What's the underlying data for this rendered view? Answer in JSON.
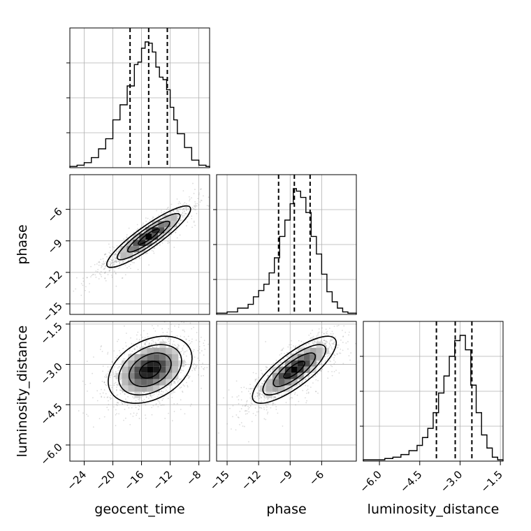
{
  "chart_data": {
    "type": "corner",
    "parameters": [
      "geocent_time",
      "phase",
      "luminosity_distance"
    ],
    "labels": {
      "geocent_time": "geocent_time",
      "phase": "phase",
      "luminosity_distance": "luminosity_distance"
    },
    "ranges": {
      "geocent_time": [
        -26.0,
        -6.5
      ],
      "phase": [
        -16.0,
        -2.7
      ],
      "luminosity_distance": [
        -6.6,
        -1.4
      ]
    },
    "ticks": {
      "geocent_time": {
        "values": [
          -24,
          -20,
          -16,
          -12,
          -8
        ],
        "labels": [
          "−24",
          "−20",
          "−16",
          "−12",
          "−8"
        ]
      },
      "phase": {
        "values": [
          -15,
          -12,
          -9,
          -6
        ],
        "labels": [
          "−15",
          "−12",
          "−9",
          "−6"
        ]
      },
      "luminosity_distance": {
        "values": [
          -6.0,
          -4.5,
          -3.0,
          -1.5
        ],
        "labels": [
          "−6.0",
          "−4.5",
          "−3.0",
          "−1.5"
        ]
      }
    },
    "quantiles": {
      "geocent_time": [
        -17.6,
        -15.0,
        -12.4
      ],
      "phase": [
        -10.1,
        -8.6,
        -7.1
      ],
      "luminosity_distance": [
        -3.88,
        -3.18,
        -2.56
      ]
    },
    "histograms": {
      "geocent_time": {
        "edges": [
          -26.0,
          -25.0,
          -24.0,
          -23.0,
          -22.0,
          -21.0,
          -20.0,
          -19.0,
          -18.0,
          -17.0,
          -16.5,
          -16.0,
          -15.5,
          -15.0,
          -14.5,
          -14.0,
          -13.5,
          -13.0,
          -12.5,
          -12.0,
          -11.5,
          -11.0,
          -10.0,
          -9.0,
          -8.0,
          -7.0,
          -6.5
        ],
        "counts": [
          1,
          2,
          4,
          8,
          15,
          23,
          38,
          50,
          65,
          82,
          84,
          95,
          100,
          99,
          92,
          80,
          72,
          70,
          62,
          48,
          38,
          27,
          16,
          6,
          2,
          1
        ]
      },
      "phase": {
        "edges": [
          -16.0,
          -15.0,
          -14.0,
          -13.0,
          -12.5,
          -12.0,
          -11.5,
          -11.0,
          -10.5,
          -10.0,
          -9.5,
          -9.0,
          -8.7,
          -8.4,
          -8.0,
          -7.5,
          -7.0,
          -6.5,
          -6.0,
          -5.5,
          -5.0,
          -4.5,
          -4.0,
          -3.5,
          -2.7
        ],
        "counts": [
          1,
          2,
          5,
          8,
          14,
          19,
          24,
          33,
          45,
          62,
          75,
          88,
          100,
          98,
          93,
          81,
          62,
          48,
          32,
          18,
          10,
          5,
          2,
          1
        ]
      },
      "luminosity_distance": {
        "edges": [
          -6.6,
          -6.2,
          -5.8,
          -5.5,
          -5.2,
          -4.9,
          -4.6,
          -4.4,
          -4.2,
          -4.0,
          -3.8,
          -3.6,
          -3.4,
          -3.2,
          -3.0,
          -2.8,
          -2.6,
          -2.4,
          -2.2,
          -2.0,
          -1.8,
          -1.6,
          -1.4
        ],
        "counts": [
          1,
          1,
          2,
          3,
          5,
          8,
          12,
          18,
          25,
          37,
          52,
          65,
          80,
          92,
          96,
          85,
          58,
          37,
          20,
          10,
          3,
          1
        ]
      }
    },
    "pairs": [
      {
        "x": "geocent_time",
        "y": "phase",
        "peak": [
          -15.0,
          -8.6
        ],
        "corr": 0.9
      },
      {
        "x": "geocent_time",
        "y": "luminosity_distance",
        "peak": [
          -14.8,
          -3.2
        ],
        "corr": 0.35
      },
      {
        "x": "phase",
        "y": "luminosity_distance",
        "peak": [
          -8.6,
          -3.2
        ],
        "corr": 0.8
      }
    ],
    "grid": true,
    "colors": {
      "line": "#000000",
      "grid": "#b0b0b0",
      "scatter": "#999999"
    }
  }
}
